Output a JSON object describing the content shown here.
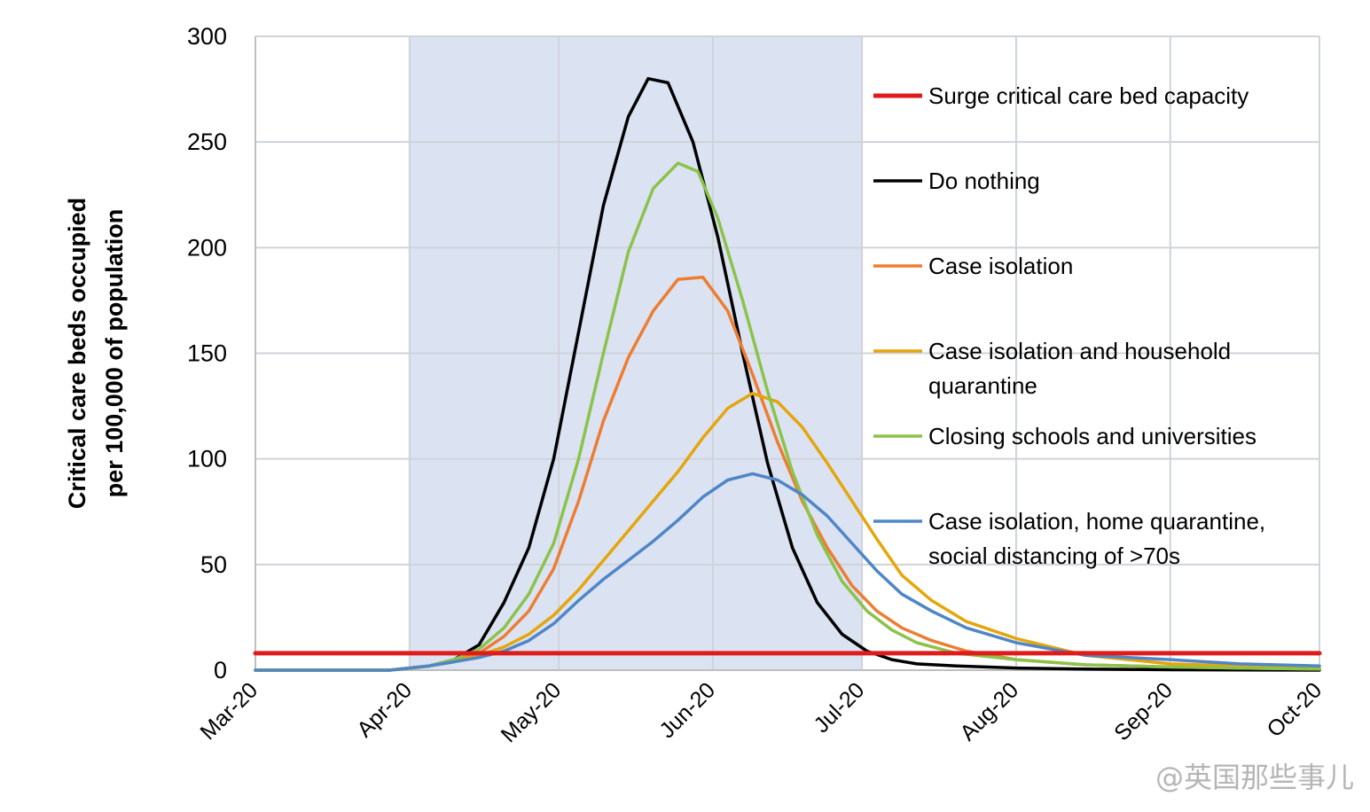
{
  "chart_data": {
    "type": "line",
    "ylabel_lines": [
      "Critical care beds occupied",
      "per 100,000 of population"
    ],
    "ylim": [
      0,
      300
    ],
    "yticks": [
      0,
      50,
      100,
      150,
      200,
      250,
      300
    ],
    "xlim": [
      "2020-03-01",
      "2020-10-01"
    ],
    "xticks": [
      {
        "date": "2020-03-01",
        "label": "Mar-20"
      },
      {
        "date": "2020-04-01",
        "label": "Apr-20"
      },
      {
        "date": "2020-05-01",
        "label": "May-20"
      },
      {
        "date": "2020-06-01",
        "label": "Jun-20"
      },
      {
        "date": "2020-07-01",
        "label": "Jul-20"
      },
      {
        "date": "2020-08-01",
        "label": "Aug-20"
      },
      {
        "date": "2020-09-01",
        "label": "Sep-20"
      },
      {
        "date": "2020-10-01",
        "label": "Oct-20"
      }
    ],
    "grid": true,
    "legend_position": "right",
    "shaded_region": {
      "from": "2020-04-01",
      "to": "2020-07-01",
      "color": "#dbe3f3"
    },
    "series": [
      {
        "name": "Surge critical care bed capacity",
        "color": "#e01b1b",
        "x": [
          "2020-03-01",
          "2020-10-01"
        ],
        "y": [
          8,
          8
        ]
      },
      {
        "name": "Do nothing",
        "color": "#000000",
        "x": [
          "2020-03-01",
          "2020-03-28",
          "2020-04-05",
          "2020-04-10",
          "2020-04-15",
          "2020-04-20",
          "2020-04-25",
          "2020-04-30",
          "2020-05-05",
          "2020-05-10",
          "2020-05-15",
          "2020-05-19",
          "2020-05-23",
          "2020-05-28",
          "2020-06-02",
          "2020-06-07",
          "2020-06-12",
          "2020-06-17",
          "2020-06-22",
          "2020-06-27",
          "2020-07-02",
          "2020-07-07",
          "2020-07-12",
          "2020-07-20",
          "2020-08-01",
          "2020-08-15",
          "2020-09-01",
          "2020-10-01"
        ],
        "y": [
          0,
          0,
          2,
          5,
          12,
          32,
          58,
          100,
          160,
          220,
          262,
          280,
          278,
          250,
          205,
          150,
          98,
          58,
          32,
          17,
          9,
          5,
          3,
          2,
          1,
          0.5,
          0.2,
          0
        ]
      },
      {
        "name": "Case isolation",
        "color": "#ed7d31",
        "x": [
          "2020-03-01",
          "2020-03-28",
          "2020-04-05",
          "2020-04-10",
          "2020-04-15",
          "2020-04-20",
          "2020-04-25",
          "2020-04-30",
          "2020-05-05",
          "2020-05-10",
          "2020-05-15",
          "2020-05-20",
          "2020-05-25",
          "2020-05-30",
          "2020-06-04",
          "2020-06-09",
          "2020-06-14",
          "2020-06-19",
          "2020-06-24",
          "2020-06-29",
          "2020-07-04",
          "2020-07-09",
          "2020-07-15",
          "2020-07-22",
          "2020-08-01",
          "2020-08-15",
          "2020-09-01",
          "2020-09-15",
          "2020-10-01"
        ],
        "y": [
          0,
          0,
          2,
          4,
          8,
          16,
          28,
          48,
          80,
          118,
          148,
          170,
          185,
          186,
          170,
          140,
          108,
          80,
          58,
          40,
          28,
          20,
          14,
          9,
          5,
          2.5,
          1.5,
          1,
          0.5
        ]
      },
      {
        "name": "Case isolation and household quarantine",
        "color": "#e5a50c",
        "x": [
          "2020-03-01",
          "2020-03-28",
          "2020-04-05",
          "2020-04-10",
          "2020-04-15",
          "2020-04-20",
          "2020-04-25",
          "2020-04-30",
          "2020-05-05",
          "2020-05-10",
          "2020-05-15",
          "2020-05-20",
          "2020-05-25",
          "2020-05-30",
          "2020-06-04",
          "2020-06-09",
          "2020-06-14",
          "2020-06-19",
          "2020-06-24",
          "2020-06-29",
          "2020-07-04",
          "2020-07-09",
          "2020-07-15",
          "2020-07-22",
          "2020-08-01",
          "2020-08-15",
          "2020-09-01",
          "2020-09-15",
          "2020-10-01"
        ],
        "y": [
          0,
          0,
          2,
          4,
          7,
          11,
          17,
          26,
          38,
          52,
          66,
          80,
          94,
          110,
          124,
          131,
          127,
          115,
          98,
          80,
          62,
          45,
          33,
          23,
          15,
          7,
          3,
          2,
          1
        ]
      },
      {
        "name": "Closing schools and universities",
        "color": "#8bc34a",
        "x": [
          "2020-03-01",
          "2020-03-28",
          "2020-04-05",
          "2020-04-10",
          "2020-04-15",
          "2020-04-20",
          "2020-04-25",
          "2020-04-30",
          "2020-05-05",
          "2020-05-10",
          "2020-05-15",
          "2020-05-20",
          "2020-05-25",
          "2020-05-29",
          "2020-06-02",
          "2020-06-07",
          "2020-06-12",
          "2020-06-17",
          "2020-06-22",
          "2020-06-27",
          "2020-07-02",
          "2020-07-07",
          "2020-07-12",
          "2020-07-20",
          "2020-08-01",
          "2020-08-15",
          "2020-09-01",
          "2020-09-15",
          "2020-10-01"
        ],
        "y": [
          0,
          0,
          2,
          5,
          10,
          20,
          36,
          60,
          100,
          150,
          198,
          228,
          240,
          236,
          214,
          175,
          132,
          94,
          64,
          42,
          28,
          19,
          13,
          8,
          5,
          2.5,
          1.5,
          1,
          0.5
        ]
      },
      {
        "name": "Case isolation, home quarantine, social distancing of >70s",
        "color": "#4f86c6",
        "x": [
          "2020-03-01",
          "2020-03-28",
          "2020-04-05",
          "2020-04-10",
          "2020-04-15",
          "2020-04-20",
          "2020-04-25",
          "2020-04-30",
          "2020-05-05",
          "2020-05-10",
          "2020-05-15",
          "2020-05-20",
          "2020-05-25",
          "2020-05-30",
          "2020-06-04",
          "2020-06-09",
          "2020-06-14",
          "2020-06-19",
          "2020-06-24",
          "2020-06-29",
          "2020-07-04",
          "2020-07-09",
          "2020-07-15",
          "2020-07-22",
          "2020-08-01",
          "2020-08-15",
          "2020-09-01",
          "2020-09-15",
          "2020-10-01"
        ],
        "y": [
          0,
          0,
          2,
          4,
          6,
          9,
          14,
          22,
          33,
          43,
          52,
          61,
          71,
          82,
          90,
          93,
          90,
          83,
          73,
          60,
          47,
          36,
          28,
          20,
          13,
          7,
          5,
          3,
          2
        ]
      }
    ]
  },
  "legend": [
    {
      "lines": [
        "Surge critical care bed capacity"
      ],
      "color": "#e01b1b",
      "thick": true
    },
    {
      "lines": [
        "Do nothing"
      ],
      "color": "#000000",
      "thick": false
    },
    {
      "lines": [
        "Case isolation"
      ],
      "color": "#ed7d31",
      "thick": false
    },
    {
      "lines": [
        "Case isolation and household",
        "quarantine"
      ],
      "color": "#e5a50c",
      "thick": false
    },
    {
      "lines": [
        "Closing schools and universities"
      ],
      "color": "#8bc34a",
      "thick": false
    },
    {
      "lines": [
        "Case isolation, home quarantine,",
        "social distancing of >70s"
      ],
      "color": "#4f86c6",
      "thick": false
    }
  ],
  "watermark": "@英国那些事儿"
}
